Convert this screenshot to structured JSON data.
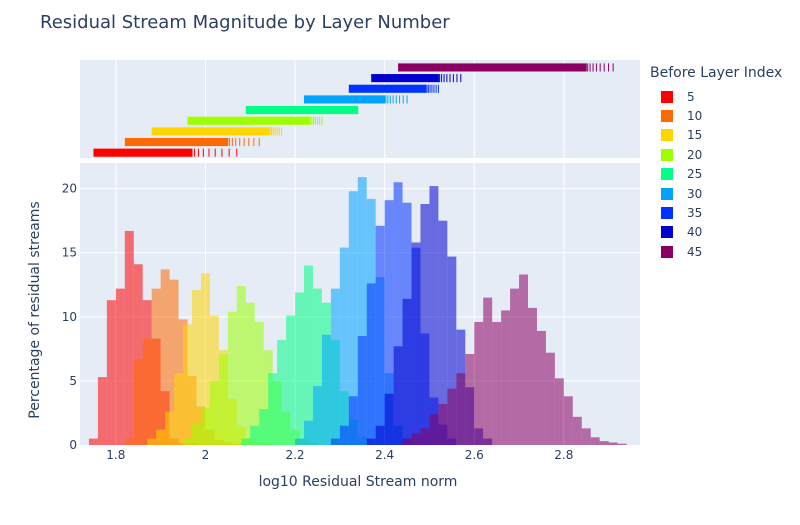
{
  "chart_data": {
    "type": "histogram",
    "title": "Residual Stream Magnitude by Layer Number",
    "xlabel": "log10 Residual Stream norm",
    "ylabel": "Percentage of residual streams",
    "legend_title": "Before Layer Index",
    "legend_position": "right",
    "xlim": [
      1.72,
      2.97
    ],
    "ylim": [
      0,
      22
    ],
    "x_ticks": [
      "1.8",
      "2",
      "2.2",
      "2.4",
      "2.6",
      "2.8"
    ],
    "x_tick_values": [
      1.8,
      2.0,
      2.2,
      2.4,
      2.6,
      2.8
    ],
    "y_ticks": [
      "0",
      "5",
      "10",
      "15",
      "20"
    ],
    "y_tick_values": [
      0,
      5,
      10,
      15,
      20
    ],
    "grid": true,
    "bin_width": 0.02,
    "marginal": "rug",
    "series": [
      {
        "name": "5",
        "color": "#ff0000",
        "range": [
          1.74,
          1.98
        ],
        "values": [
          0.5,
          5.3,
          11.3,
          12.2,
          16.7,
          14.1,
          11.3,
          8.3,
          4.2,
          0.5,
          0.1,
          0.1
        ],
        "rug_min": 1.75,
        "rug_max": 2.07,
        "rug_dense_max": 1.97
      },
      {
        "name": "10",
        "color": "#ff6a00",
        "range": [
          1.82,
          2.1
        ],
        "values": [
          0.5,
          6.7,
          8.3,
          12.2,
          13.7,
          12.9,
          9.8,
          5.4,
          3.0,
          1.2,
          0.4,
          0.2,
          0.1,
          0.1
        ],
        "rug_min": 1.82,
        "rug_max": 2.12,
        "rug_dense_max": 2.05
      },
      {
        "name": "15",
        "color": "#ffd500",
        "range": [
          1.87,
          2.15
        ],
        "values": [
          0.5,
          1.2,
          2.6,
          5.6,
          9.4,
          12.1,
          13.4,
          10.1,
          7.4,
          3.6,
          1.4,
          0.5,
          0.2,
          0.1
        ],
        "rug_min": 1.88,
        "rug_max": 2.17,
        "rug_dense_max": 2.14
      },
      {
        "name": "20",
        "color": "#9dff00",
        "range": [
          1.95,
          2.25
        ],
        "values": [
          0.5,
          1.7,
          2.9,
          5.0,
          7.1,
          10.4,
          12.4,
          11.1,
          9.6,
          7.4,
          5.0,
          2.6,
          1.2,
          0.5,
          0.2
        ],
        "rug_min": 1.96,
        "rug_max": 2.26,
        "rug_dense_max": 2.23
      },
      {
        "name": "25",
        "color": "#00ff85",
        "range": [
          2.08,
          2.36
        ],
        "values": [
          0.5,
          1.5,
          2.8,
          5.6,
          8.2,
          10.1,
          11.9,
          14.0,
          12.2,
          11.1,
          8.2,
          4.2,
          2.0,
          0.6
        ],
        "rug_min": 2.09,
        "rug_max": 2.34,
        "rug_dense_max": 2.33
      },
      {
        "name": "30",
        "color": "#00a2ff",
        "range": [
          2.2,
          2.46
        ],
        "values": [
          0.5,
          1.9,
          4.6,
          8.6,
          12.2,
          15.4,
          19.8,
          20.9,
          19.2,
          13.1,
          5.6,
          1.5,
          0.5
        ],
        "rug_min": 2.22,
        "rug_max": 2.45,
        "rug_dense_max": 2.4
      },
      {
        "name": "35",
        "color": "#0033ff",
        "range": [
          2.28,
          2.56
        ],
        "values": [
          0.5,
          1.5,
          3.8,
          8.5,
          12.6,
          17.1,
          19.1,
          20.5,
          18.9,
          15.4,
          8.7,
          3.7,
          1.6,
          0.5
        ],
        "rug_min": 2.32,
        "rug_max": 2.52,
        "rug_dense_max": 2.49
      },
      {
        "name": "40",
        "color": "#0000d0",
        "range": [
          2.36,
          2.64
        ],
        "values": [
          0.5,
          1.5,
          4.0,
          7.7,
          11.4,
          15.8,
          18.8,
          20.2,
          17.5,
          14.7,
          9.0,
          4.5,
          1.3,
          0.5
        ],
        "rug_min": 2.37,
        "rug_max": 2.57,
        "rug_dense_max": 2.52
      },
      {
        "name": "45",
        "color": "#8a0062",
        "range": [
          2.44,
          2.94
        ],
        "values": [
          0.5,
          0.9,
          1.3,
          2.4,
          3.2,
          4.4,
          5.6,
          7.1,
          9.6,
          11.5,
          9.6,
          10.5,
          12.2,
          13.3,
          10.7,
          8.9,
          7.2,
          5.2,
          3.8,
          2.2,
          1.3,
          0.6,
          0.3,
          0.2,
          0.1
        ],
        "rug_min": 2.43,
        "rug_max": 2.91,
        "rug_dense_max": 2.85
      }
    ]
  }
}
